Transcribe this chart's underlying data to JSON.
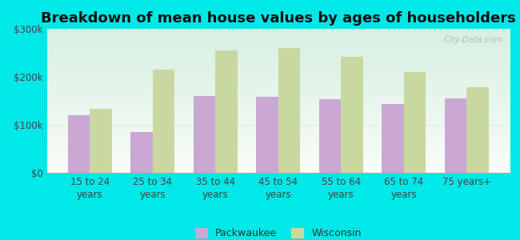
{
  "title": "Breakdown of mean house values by ages of householders",
  "categories": [
    "15 to 24\nyears",
    "25 to 34\nyears",
    "35 to 44\nyears",
    "45 to 54\nyears",
    "55 to 64\nyears",
    "65 to 74\nyears",
    "75 years+"
  ],
  "packwaukee": [
    120000,
    85000,
    160000,
    158000,
    153000,
    143000,
    155000
  ],
  "wisconsin": [
    133000,
    215000,
    255000,
    260000,
    242000,
    210000,
    178000
  ],
  "packwaukee_color": "#c9a8d4",
  "wisconsin_color": "#c8d8a0",
  "background_color": "#00e8e8",
  "plot_bg_top": "#d8efe3",
  "plot_bg_bottom": "#f8fdf8",
  "ylim": [
    0,
    300000
  ],
  "yticks": [
    0,
    100000,
    200000,
    300000
  ],
  "ytick_labels": [
    "$0",
    "$100k",
    "$200k",
    "$300k"
  ],
  "bar_width": 0.35,
  "legend_labels": [
    "Packwaukee",
    "Wisconsin"
  ],
  "watermark": "City-Data.com",
  "grid_color": "#e0ece4",
  "title_fontsize": 13,
  "tick_fontsize": 8.5
}
